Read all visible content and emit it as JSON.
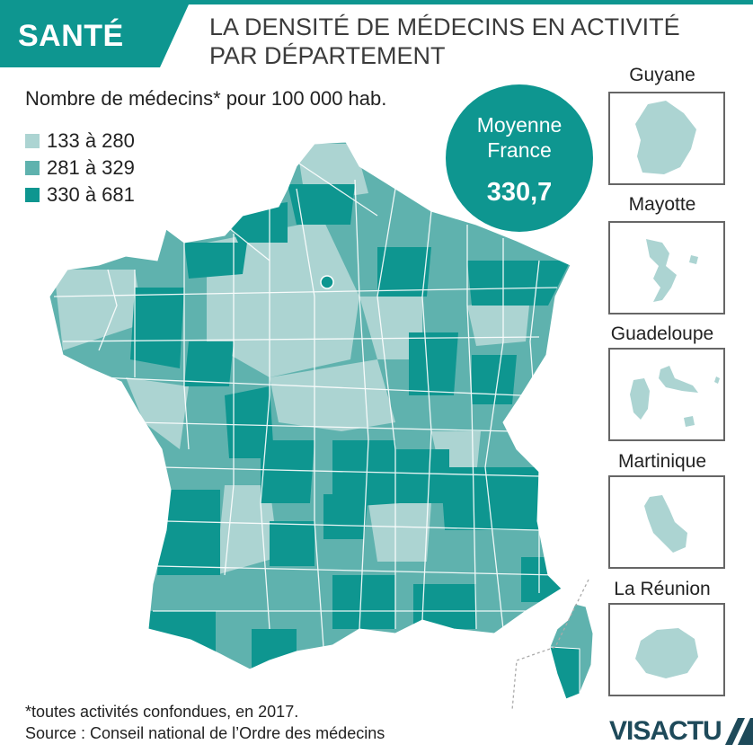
{
  "header": {
    "section": "SANTÉ",
    "title_line1": "LA DENSITÉ DE MÉDECINS EN ACTIVITÉ",
    "title_line2": "PAR DÉPARTEMENT"
  },
  "legend": {
    "title": "Nombre de médecins* pour 100 000 hab.",
    "items": [
      {
        "label": "133 à 280",
        "color": "#acd4d2"
      },
      {
        "label": "281 à 329",
        "color": "#5fb2ae"
      },
      {
        "label": "330 à 681",
        "color": "#0e9690"
      }
    ]
  },
  "average": {
    "line1": "Moyenne",
    "line2": "France",
    "value": "330,7"
  },
  "overseas": [
    {
      "label": "Guyane",
      "category": 1
    },
    {
      "label": "Mayotte",
      "category": 1
    },
    {
      "label": "Guadeloupe",
      "category": 1
    },
    {
      "label": "Martinique",
      "category": 1
    },
    {
      "label": "La Réunion",
      "category": 1
    }
  ],
  "footer": {
    "footnote": "*toutes activités confondues, en 2017.",
    "source": "Source : Conseil national de l’Ordre des médecins",
    "logo": "VISACTU"
  },
  "colors": {
    "brand": "#0e9690",
    "light": "#acd4d2",
    "medium": "#5fb2ae",
    "dark": "#0e9690"
  }
}
